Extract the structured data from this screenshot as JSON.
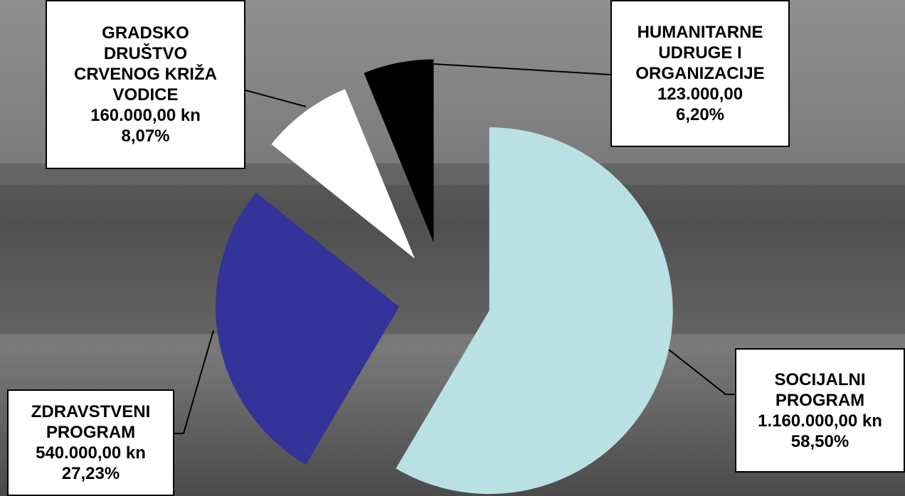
{
  "chart_data": {
    "type": "pie",
    "categories": [
      "SOCIJALNI\nPROGRAM",
      "ZDRAVSTVENI\nPROGRAM",
      "GRADSKO\nDRUŠTVO\nCRVENOG KRIŽA\nVODICE",
      "HUMANITARNE\nUDRUGE I\nORGANIZACIJE"
    ],
    "values": [
      1160000,
      540000,
      160000,
      123000
    ],
    "value_labels": [
      "1.160.000,00 kn",
      "540.000,00 kn",
      "160.000,00 kn",
      "123.000,00"
    ],
    "percents": [
      58.5,
      27.23,
      8.07,
      6.2
    ],
    "percent_labels": [
      "58,50%",
      "27,23%",
      "8,07%",
      "6,20%"
    ],
    "colors": [
      "#b9e0e3",
      "#33339a",
      "#ffffff",
      "#000000"
    ]
  }
}
